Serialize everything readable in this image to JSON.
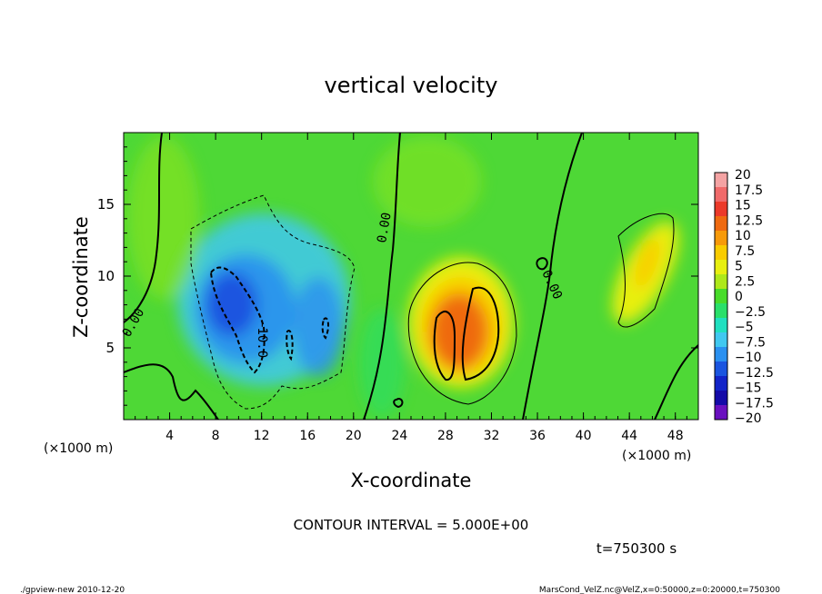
{
  "chart_data": {
    "type": "heatmap",
    "title": "vertical velocity",
    "xlabel": "X-coordinate",
    "ylabel": "Z-coordinate",
    "x_unit": "(×1000 m)",
    "y_unit": "(×1000 m)",
    "xlim": [
      0,
      50
    ],
    "ylim": [
      0,
      20
    ],
    "x_ticks": [
      4,
      8,
      12,
      16,
      20,
      24,
      28,
      32,
      36,
      40,
      44,
      48
    ],
    "y_ticks": [
      5,
      10,
      15
    ],
    "colorbar": {
      "labels": [
        "20",
        "17.5",
        "15",
        "12.5",
        "10",
        "7.5",
        "5",
        "2.5",
        "0",
        "−2.5",
        "−5",
        "−7.5",
        "−10",
        "−12.5",
        "−15",
        "−17.5",
        "−20"
      ],
      "colors": [
        "#f4a3a3",
        "#f06a6a",
        "#ec3a2a",
        "#ef6a10",
        "#f79a0a",
        "#f9cc00",
        "#e8ef10",
        "#aee81a",
        "#48dc2a",
        "#2ae06a",
        "#20e0c0",
        "#40c8f0",
        "#2a90f0",
        "#1a55e0",
        "#1224c8",
        "#140aa8",
        "#6a10c0"
      ]
    },
    "contour_labels": [
      "0.00",
      "0.00",
      "0.00",
      "−10.0"
    ],
    "annotation": "CONTOUR INTERVAL = 5.000E+00",
    "time_label": "t=750300 s",
    "regions": [
      {
        "name": "downdraft-core",
        "x": 10.5,
        "z": 7.5,
        "value": -12
      },
      {
        "name": "downdraft-outer",
        "x": 12,
        "z": 9,
        "value": -7
      },
      {
        "name": "updraft-core",
        "x": 30.5,
        "z": 6,
        "value": 12
      },
      {
        "name": "updraft-outer",
        "x": 30,
        "z": 7,
        "value": 7
      },
      {
        "name": "updraft-plume",
        "x": 45.5,
        "z": 10,
        "value": 7
      }
    ]
  },
  "footer": {
    "left": "./gpview-new   2010-12-20",
    "right": "MarsCond_VelZ.nc@VelZ,x=0:50000,z=0:20000,t=750300"
  }
}
